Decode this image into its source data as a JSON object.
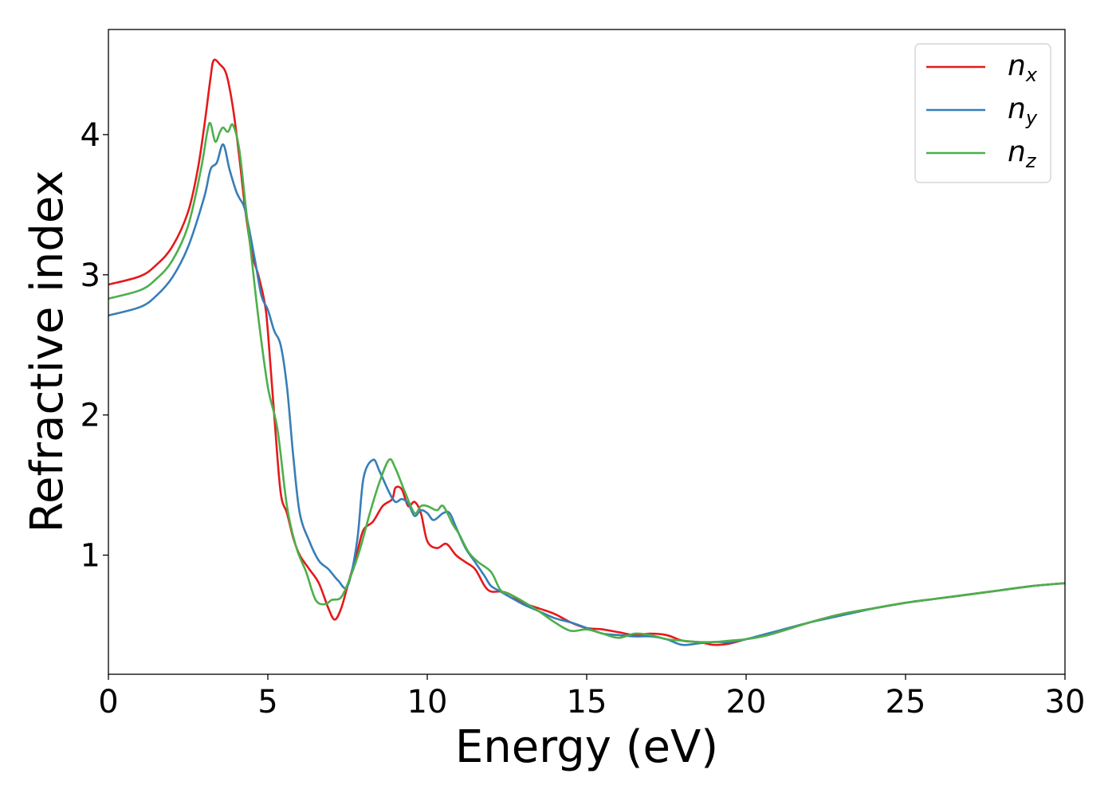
{
  "chart_data": {
    "type": "line",
    "xlabel": "Energy (eV)",
    "ylabel": "Refractive index",
    "xlim": [
      0,
      30
    ],
    "ylim": [
      0.15,
      4.75
    ],
    "xticks": [
      0,
      5,
      10,
      15,
      20,
      25,
      30
    ],
    "xtick_labels": [
      "0",
      "5",
      "10",
      "15",
      "20",
      "25",
      "30"
    ],
    "yticks": [
      1,
      2,
      3,
      4
    ],
    "ytick_labels": [
      "1",
      "2",
      "3",
      "4"
    ],
    "grid": false,
    "legend_position": "top-right",
    "series": [
      {
        "name": "n_x",
        "label_base": "n",
        "label_sub": "x",
        "color": "#e41a1c",
        "x": [
          0,
          1,
          1.5,
          2,
          2.5,
          2.8,
          3.0,
          3.2,
          3.3,
          3.5,
          3.7,
          3.9,
          4.1,
          4.3,
          4.5,
          4.7,
          4.9,
          5.0,
          5.2,
          5.4,
          5.6,
          5.8,
          6.0,
          6.3,
          6.6,
          6.9,
          7.1,
          7.3,
          7.5,
          7.8,
          8.0,
          8.3,
          8.6,
          8.9,
          9.0,
          9.2,
          9.4,
          9.6,
          9.8,
          10.0,
          10.3,
          10.6,
          10.9,
          11.2,
          11.5,
          11.8,
          12.0,
          12.3,
          12.6,
          13.0,
          13.5,
          14.0,
          14.5,
          15.0,
          15.5,
          16.0,
          16.5,
          17.0,
          17.5,
          18.0,
          18.5,
          19.0,
          19.5,
          20.0,
          20.5,
          21.0,
          22.0,
          23.0,
          24.0,
          25.0,
          26.0,
          27.0,
          28.0,
          29.0,
          30.0
        ],
        "y": [
          2.93,
          2.99,
          3.07,
          3.2,
          3.45,
          3.75,
          4.05,
          4.4,
          4.53,
          4.5,
          4.43,
          4.2,
          3.85,
          3.45,
          3.15,
          3.0,
          2.8,
          2.6,
          2.0,
          1.45,
          1.3,
          1.12,
          1.0,
          0.9,
          0.8,
          0.62,
          0.54,
          0.62,
          0.78,
          1.02,
          1.18,
          1.24,
          1.35,
          1.4,
          1.48,
          1.47,
          1.35,
          1.38,
          1.3,
          1.1,
          1.05,
          1.08,
          1.0,
          0.95,
          0.9,
          0.78,
          0.74,
          0.74,
          0.72,
          0.66,
          0.62,
          0.58,
          0.52,
          0.48,
          0.47,
          0.45,
          0.43,
          0.44,
          0.43,
          0.39,
          0.38,
          0.36,
          0.37,
          0.4,
          0.42,
          0.45,
          0.52,
          0.58,
          0.62,
          0.66,
          0.69,
          0.72,
          0.75,
          0.78,
          0.8
        ]
      },
      {
        "name": "n_y",
        "label_base": "n",
        "label_sub": "y",
        "color": "#377eb8",
        "x": [
          0,
          1,
          1.5,
          2,
          2.5,
          3.0,
          3.2,
          3.4,
          3.6,
          3.8,
          4.0,
          4.1,
          4.3,
          4.6,
          4.8,
          5.0,
          5.2,
          5.4,
          5.6,
          5.8,
          6.0,
          6.3,
          6.6,
          6.9,
          7.2,
          7.5,
          7.8,
          8.0,
          8.3,
          8.5,
          8.8,
          9.0,
          9.2,
          9.4,
          9.6,
          9.8,
          10.0,
          10.2,
          10.5,
          10.7,
          10.9,
          11.2,
          11.5,
          11.8,
          12.0,
          12.3,
          12.6,
          13.0,
          13.5,
          14.0,
          14.5,
          15.0,
          15.5,
          16.0,
          16.5,
          17.0,
          17.5,
          18.0,
          18.5,
          19.0,
          19.5,
          20.0,
          20.5,
          21.0,
          22.0,
          23.0,
          24.0,
          25.0,
          26.0,
          27.0,
          28.0,
          29.0,
          30.0
        ],
        "y": [
          2.71,
          2.77,
          2.85,
          2.98,
          3.2,
          3.55,
          3.75,
          3.8,
          3.93,
          3.75,
          3.6,
          3.55,
          3.45,
          3.1,
          2.85,
          2.75,
          2.6,
          2.5,
          2.2,
          1.7,
          1.3,
          1.1,
          0.96,
          0.9,
          0.82,
          0.78,
          1.1,
          1.55,
          1.68,
          1.6,
          1.45,
          1.38,
          1.4,
          1.37,
          1.28,
          1.32,
          1.3,
          1.25,
          1.3,
          1.3,
          1.2,
          1.05,
          0.95,
          0.85,
          0.78,
          0.74,
          0.7,
          0.65,
          0.6,
          0.55,
          0.52,
          0.48,
          0.44,
          0.43,
          0.42,
          0.42,
          0.4,
          0.36,
          0.37,
          0.38,
          0.38,
          0.4,
          0.43,
          0.46,
          0.52,
          0.57,
          0.62,
          0.66,
          0.69,
          0.72,
          0.75,
          0.78,
          0.8
        ]
      },
      {
        "name": "n_z",
        "label_base": "n",
        "label_sub": "z",
        "color": "#4daf4a",
        "x": [
          0,
          1,
          1.5,
          2,
          2.5,
          2.9,
          3.1,
          3.2,
          3.35,
          3.5,
          3.6,
          3.75,
          3.9,
          4.1,
          4.3,
          4.5,
          4.7,
          5.0,
          5.3,
          5.6,
          5.9,
          6.2,
          6.5,
          6.8,
          7.0,
          7.3,
          7.6,
          7.9,
          8.2,
          8.5,
          8.8,
          9.0,
          9.3,
          9.6,
          9.8,
          10.0,
          10.3,
          10.5,
          10.8,
          11.0,
          11.3,
          11.6,
          12.0,
          12.3,
          12.6,
          13.0,
          13.5,
          14.0,
          14.5,
          15.0,
          15.5,
          16.0,
          16.5,
          17.0,
          17.5,
          18.0,
          18.5,
          19.0,
          19.5,
          20.0,
          20.5,
          21.0,
          22.0,
          23.0,
          24.0,
          25.0,
          26.0,
          27.0,
          28.0,
          29.0,
          30.0
        ],
        "y": [
          2.83,
          2.89,
          2.97,
          3.1,
          3.35,
          3.75,
          4.02,
          4.08,
          3.95,
          4.02,
          4.05,
          4.02,
          4.07,
          3.9,
          3.5,
          3.1,
          2.7,
          2.2,
          1.9,
          1.35,
          1.05,
          0.88,
          0.68,
          0.65,
          0.68,
          0.7,
          0.85,
          1.05,
          1.3,
          1.52,
          1.68,
          1.62,
          1.45,
          1.3,
          1.35,
          1.35,
          1.32,
          1.35,
          1.22,
          1.15,
          1.02,
          0.95,
          0.88,
          0.75,
          0.72,
          0.67,
          0.6,
          0.52,
          0.46,
          0.47,
          0.44,
          0.41,
          0.44,
          0.43,
          0.4,
          0.39,
          0.38,
          0.38,
          0.39,
          0.4,
          0.42,
          0.45,
          0.52,
          0.58,
          0.62,
          0.66,
          0.69,
          0.72,
          0.75,
          0.78,
          0.8
        ]
      }
    ]
  }
}
